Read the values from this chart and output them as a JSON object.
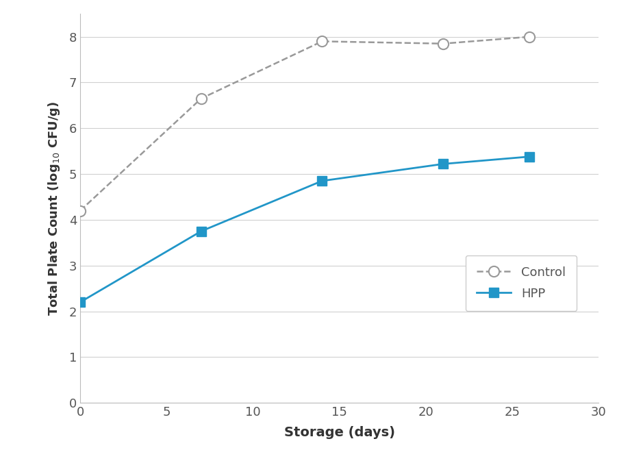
{
  "control_x": [
    0,
    7,
    14,
    21,
    26
  ],
  "control_y": [
    4.2,
    6.65,
    7.9,
    7.85,
    8.0
  ],
  "hpp_x": [
    0,
    7,
    14,
    21,
    26
  ],
  "hpp_y": [
    2.2,
    3.75,
    4.85,
    5.22,
    5.38
  ],
  "control_color": "#999999",
  "hpp_color": "#2196C8",
  "xlabel": "Storage (days)",
  "xlim": [
    0,
    30
  ],
  "ylim": [
    0,
    8.5
  ],
  "xticks": [
    0,
    5,
    10,
    15,
    20,
    25,
    30
  ],
  "yticks": [
    0,
    1,
    2,
    3,
    4,
    5,
    6,
    7,
    8
  ],
  "background_color": "#ffffff",
  "grid_color": "#d0d0d0"
}
